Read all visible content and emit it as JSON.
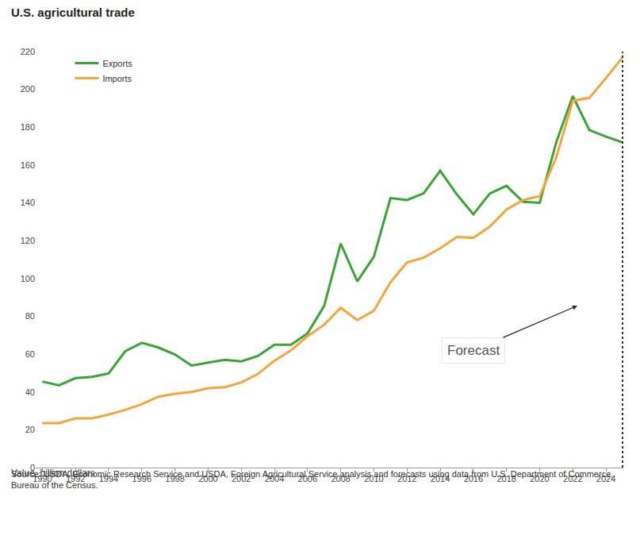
{
  "chart_data": {
    "type": "line",
    "title": "U.S. agricultural trade",
    "subtitle": "Value, billion dollars",
    "x": [
      1990,
      1991,
      1992,
      1993,
      1994,
      1995,
      1996,
      1997,
      1998,
      1999,
      2000,
      2001,
      2002,
      2003,
      2004,
      2005,
      2006,
      2007,
      2008,
      2009,
      2010,
      2011,
      2012,
      2013,
      2014,
      2015,
      2016,
      2017,
      2018,
      2019,
      2020,
      2021,
      2022,
      2023,
      2024,
      2025
    ],
    "series": [
      {
        "name": "Exports",
        "color": "#38a534",
        "values": [
          45.5,
          43.5,
          47.3,
          48,
          49.8,
          61.5,
          66,
          63.5,
          59.8,
          54,
          55.5,
          57,
          56.2,
          59,
          65,
          65,
          71,
          85.5,
          118.5,
          98.5,
          111.5,
          142.5,
          141.5,
          145,
          157,
          144.5,
          134,
          145,
          149,
          140.5,
          140,
          172,
          196.5,
          178.5,
          175,
          172
        ]
      },
      {
        "name": "Imports",
        "color": "#f7a43c",
        "values": [
          23.5,
          23.5,
          26,
          26,
          28,
          30.5,
          33.5,
          37.5,
          39,
          40,
          42,
          42.5,
          45,
          49.5,
          56.5,
          62,
          69.5,
          75.5,
          84.5,
          78,
          83,
          98,
          108.5,
          111,
          116,
          122,
          121.5,
          127.5,
          136.5,
          141.5,
          143.5,
          164,
          194,
          195.5,
          206,
          217
        ]
      }
    ],
    "xlim": [
      1989.6,
      2025
    ],
    "xticks": [
      1990,
      1992,
      1994,
      1996,
      1998,
      2000,
      2002,
      2004,
      2006,
      2008,
      2010,
      2012,
      2014,
      2016,
      2018,
      2020,
      2022,
      2024
    ],
    "ylim": [
      0,
      220
    ],
    "yticks": [
      0,
      20,
      40,
      60,
      80,
      100,
      120,
      140,
      160,
      180,
      200,
      220
    ],
    "grid": false,
    "legend": "top-left",
    "annotations": [
      "Forecast"
    ],
    "source": [
      "Source: USDA, Economic Research Service and USDA, Foreign Agricultural Service analysis and forecasts using data from U.S. Department of Commerce,",
      "Bureau of the Census."
    ]
  }
}
